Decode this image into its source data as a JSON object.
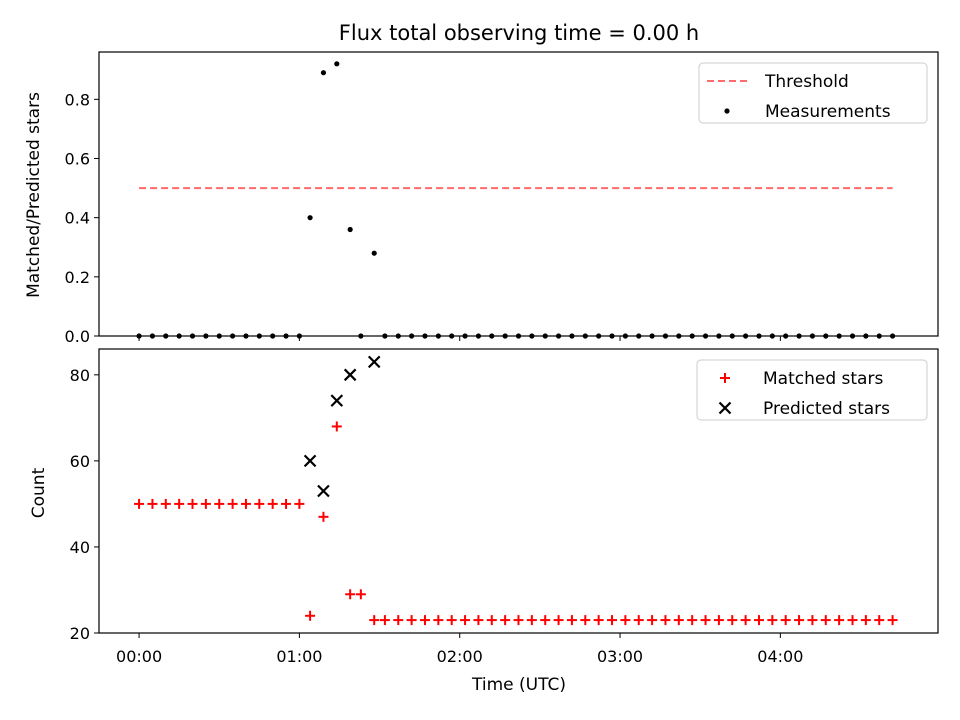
{
  "title": "Flux total observing time = 0.00 h",
  "xlabel": "Time (UTC)",
  "x_ticks": [
    "00:00",
    "01:00",
    "02:00",
    "03:00",
    "04:00"
  ],
  "colors": {
    "threshold": "#ff6b6b",
    "measurement": "#000000",
    "matched": "#ff0000",
    "predicted": "#000000"
  },
  "chart_data": [
    {
      "type": "scatter",
      "ylabel": "Matched/Predicted stars",
      "ylim": [
        0,
        0.96
      ],
      "xlim": [
        "-00:15",
        "04:59"
      ],
      "y_ticks": [
        "0.0",
        "0.2",
        "0.4",
        "0.6",
        "0.8"
      ],
      "legend_position": "top-right",
      "threshold": {
        "name": "Threshold",
        "value": 0.5,
        "x_range": [
          "00:00",
          "04:42"
        ]
      },
      "series": [
        {
          "name": "Measurements",
          "x": [
            "00:00",
            "00:05",
            "00:10",
            "00:15",
            "00:20",
            "00:25",
            "00:30",
            "00:35",
            "00:40",
            "00:45",
            "00:50",
            "00:55",
            "01:00",
            "01:04",
            "01:09",
            "01:14",
            "01:19",
            "01:23",
            "01:28",
            "01:32",
            "01:37",
            "01:42",
            "01:47",
            "01:52",
            "01:57",
            "02:02",
            "02:07",
            "02:12",
            "02:17",
            "02:22",
            "02:27",
            "02:32",
            "02:37",
            "02:42",
            "02:47",
            "02:52",
            "02:57",
            "03:02",
            "03:07",
            "03:12",
            "03:17",
            "03:22",
            "03:27",
            "03:32",
            "03:37",
            "03:42",
            "03:47",
            "03:52",
            "03:57",
            "04:02",
            "04:07",
            "04:12",
            "04:17",
            "04:22",
            "04:27",
            "04:32",
            "04:37",
            "04:42"
          ],
          "values": [
            0,
            0,
            0,
            0,
            0,
            0,
            0,
            0,
            0,
            0,
            0,
            0,
            0,
            0.4,
            0.89,
            0.92,
            0.36,
            0,
            0.28,
            0,
            0,
            0,
            0,
            0,
            0,
            0,
            0,
            0,
            0,
            0,
            0,
            0,
            0,
            0,
            0,
            0,
            0,
            0,
            0,
            0,
            0,
            0,
            0,
            0,
            0,
            0,
            0,
            0,
            0,
            0,
            0,
            0,
            0,
            0,
            0,
            0,
            0,
            0
          ]
        }
      ]
    },
    {
      "type": "scatter",
      "ylabel": "Count",
      "ylim": [
        20,
        86
      ],
      "xlim": [
        "-00:15",
        "04:59"
      ],
      "y_ticks": [
        "20",
        "40",
        "60",
        "80"
      ],
      "legend_position": "top-right",
      "series": [
        {
          "name": "Matched stars",
          "x": [
            "00:00",
            "00:05",
            "00:10",
            "00:15",
            "00:20",
            "00:25",
            "00:30",
            "00:35",
            "00:40",
            "00:45",
            "00:50",
            "00:55",
            "01:00",
            "01:04",
            "01:09",
            "01:14",
            "01:19",
            "01:23",
            "01:28",
            "01:32",
            "01:37",
            "01:42",
            "01:47",
            "01:52",
            "01:57",
            "02:02",
            "02:07",
            "02:12",
            "02:17",
            "02:22",
            "02:27",
            "02:32",
            "02:37",
            "02:42",
            "02:47",
            "02:52",
            "02:57",
            "03:02",
            "03:07",
            "03:12",
            "03:17",
            "03:22",
            "03:27",
            "03:32",
            "03:37",
            "03:42",
            "03:47",
            "03:52",
            "03:57",
            "04:02",
            "04:07",
            "04:12",
            "04:17",
            "04:22",
            "04:27",
            "04:32",
            "04:37",
            "04:42"
          ],
          "values": [
            50,
            50,
            50,
            50,
            50,
            50,
            50,
            50,
            50,
            50,
            50,
            50,
            50,
            24,
            47,
            68,
            29,
            29,
            23,
            23,
            23,
            23,
            23,
            23,
            23,
            23,
            23,
            23,
            23,
            23,
            23,
            23,
            23,
            23,
            23,
            23,
            23,
            23,
            23,
            23,
            23,
            23,
            23,
            23,
            23,
            23,
            23,
            23,
            23,
            23,
            23,
            23,
            23,
            23,
            23,
            23,
            23,
            23
          ]
        },
        {
          "name": "Predicted stars",
          "x": [
            "01:04",
            "01:09",
            "01:14",
            "01:19",
            "01:28"
          ],
          "values": [
            60,
            53,
            74,
            80,
            83
          ]
        }
      ]
    }
  ]
}
